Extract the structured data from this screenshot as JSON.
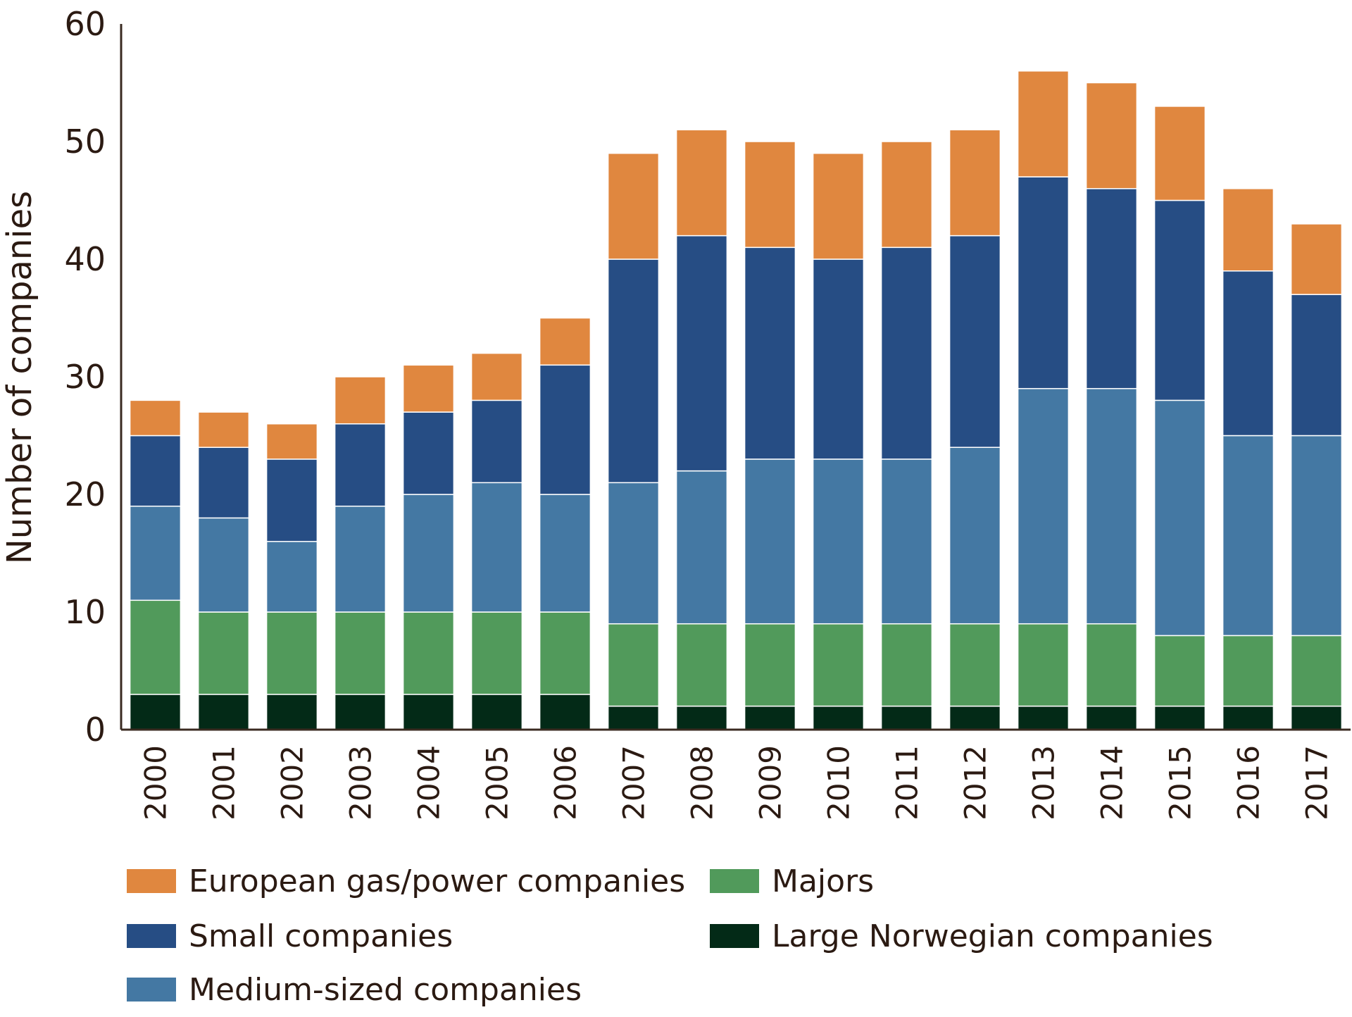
{
  "chart_data": {
    "type": "bar",
    "stacked": true,
    "title": "",
    "xlabel": "",
    "ylabel": "Number of companies",
    "ylim": [
      0,
      60
    ],
    "yticks": [
      0,
      10,
      20,
      30,
      40,
      50,
      60
    ],
    "grid": false,
    "legend_position": "bottom",
    "categories": [
      "2000",
      "2001",
      "2002",
      "2003",
      "2004",
      "2005",
      "2006",
      "2007",
      "2008",
      "2009",
      "2010",
      "2011",
      "2012",
      "2013",
      "2014",
      "2015",
      "2016",
      "2017"
    ],
    "series": [
      {
        "name": "Large Norwegian companies",
        "color": "#032a17",
        "values": [
          3,
          3,
          3,
          3,
          3,
          3,
          3,
          2,
          2,
          2,
          2,
          2,
          2,
          2,
          2,
          2,
          2,
          2
        ]
      },
      {
        "name": "Majors",
        "color": "#519a5b",
        "values": [
          8,
          7,
          7,
          7,
          7,
          7,
          7,
          7,
          7,
          7,
          7,
          7,
          7,
          7,
          7,
          6,
          6,
          6
        ]
      },
      {
        "name": "Medium-sized companies",
        "color": "#4478a3",
        "values": [
          8,
          8,
          6,
          9,
          10,
          11,
          10,
          12,
          13,
          14,
          14,
          14,
          15,
          20,
          20,
          20,
          17,
          17
        ]
      },
      {
        "name": "Small companies",
        "color": "#264d84",
        "values": [
          6,
          6,
          7,
          7,
          7,
          7,
          11,
          19,
          20,
          18,
          17,
          18,
          18,
          18,
          17,
          17,
          14,
          12
        ]
      },
      {
        "name": "European gas/power companies",
        "color": "#e0873f",
        "values": [
          3,
          3,
          3,
          4,
          4,
          4,
          4,
          9,
          9,
          9,
          9,
          9,
          9,
          9,
          9,
          8,
          7,
          6
        ]
      }
    ],
    "legend_order": [
      "European gas/power companies",
      "Small companies",
      "Medium-sized companies",
      "Majors",
      "Large Norwegian companies"
    ]
  }
}
